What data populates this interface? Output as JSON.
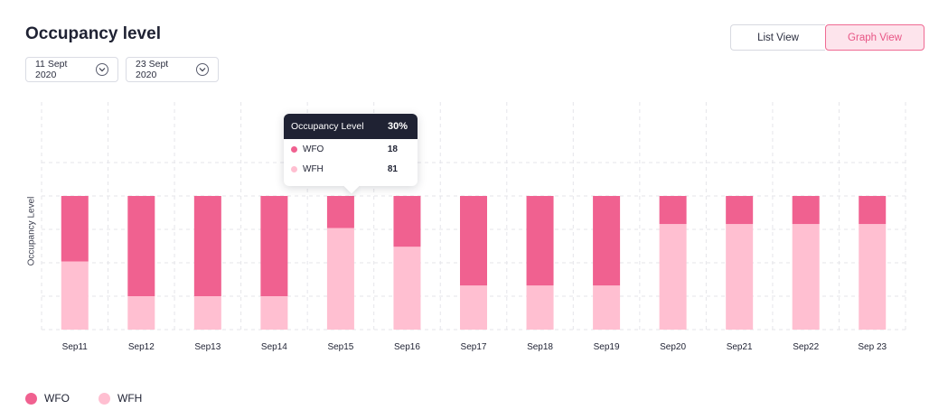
{
  "header": {
    "title": "Occupancy level",
    "start_date": "11 Sept 2020",
    "end_date": "23 Sept 2020",
    "list_view_label": "List View",
    "graph_view_label": "Graph View",
    "active_view": "Graph View"
  },
  "colors": {
    "wfo": "#f06190",
    "wfh": "#ffbfd1",
    "accent": "#ef6a93",
    "grid": "#e6e6ea",
    "tooltip_header": "#1f2233"
  },
  "tooltip": {
    "title": "Occupancy Level",
    "value": "30%",
    "rows": [
      {
        "name": "WFO",
        "value": "18"
      },
      {
        "name": "WFH",
        "value": "81"
      }
    ]
  },
  "chart_data": {
    "type": "bar",
    "stacked": true,
    "ylabel": "Occupancy Level",
    "ylim": [
      0,
      100
    ],
    "grid": true,
    "legend_position": "bottom-left",
    "categories": [
      "Sep11",
      "Sep12",
      "Sep13",
      "Sep14",
      "Sep15",
      "Sep16",
      "Sep17",
      "Sep18",
      "Sep19",
      "Sep20",
      "Sep21",
      "Sep22",
      "Sep 23"
    ],
    "series": [
      {
        "name": "WFH",
        "values": [
          51,
          25,
          25,
          25,
          76,
          62,
          33,
          33,
          33,
          79,
          79,
          79,
          79
        ]
      },
      {
        "name": "WFO",
        "values": [
          49,
          75,
          75,
          75,
          24,
          38,
          67,
          67,
          67,
          21,
          21,
          21,
          21
        ]
      }
    ]
  },
  "legend": {
    "items": [
      {
        "label": "WFO"
      },
      {
        "label": "WFH"
      }
    ]
  }
}
